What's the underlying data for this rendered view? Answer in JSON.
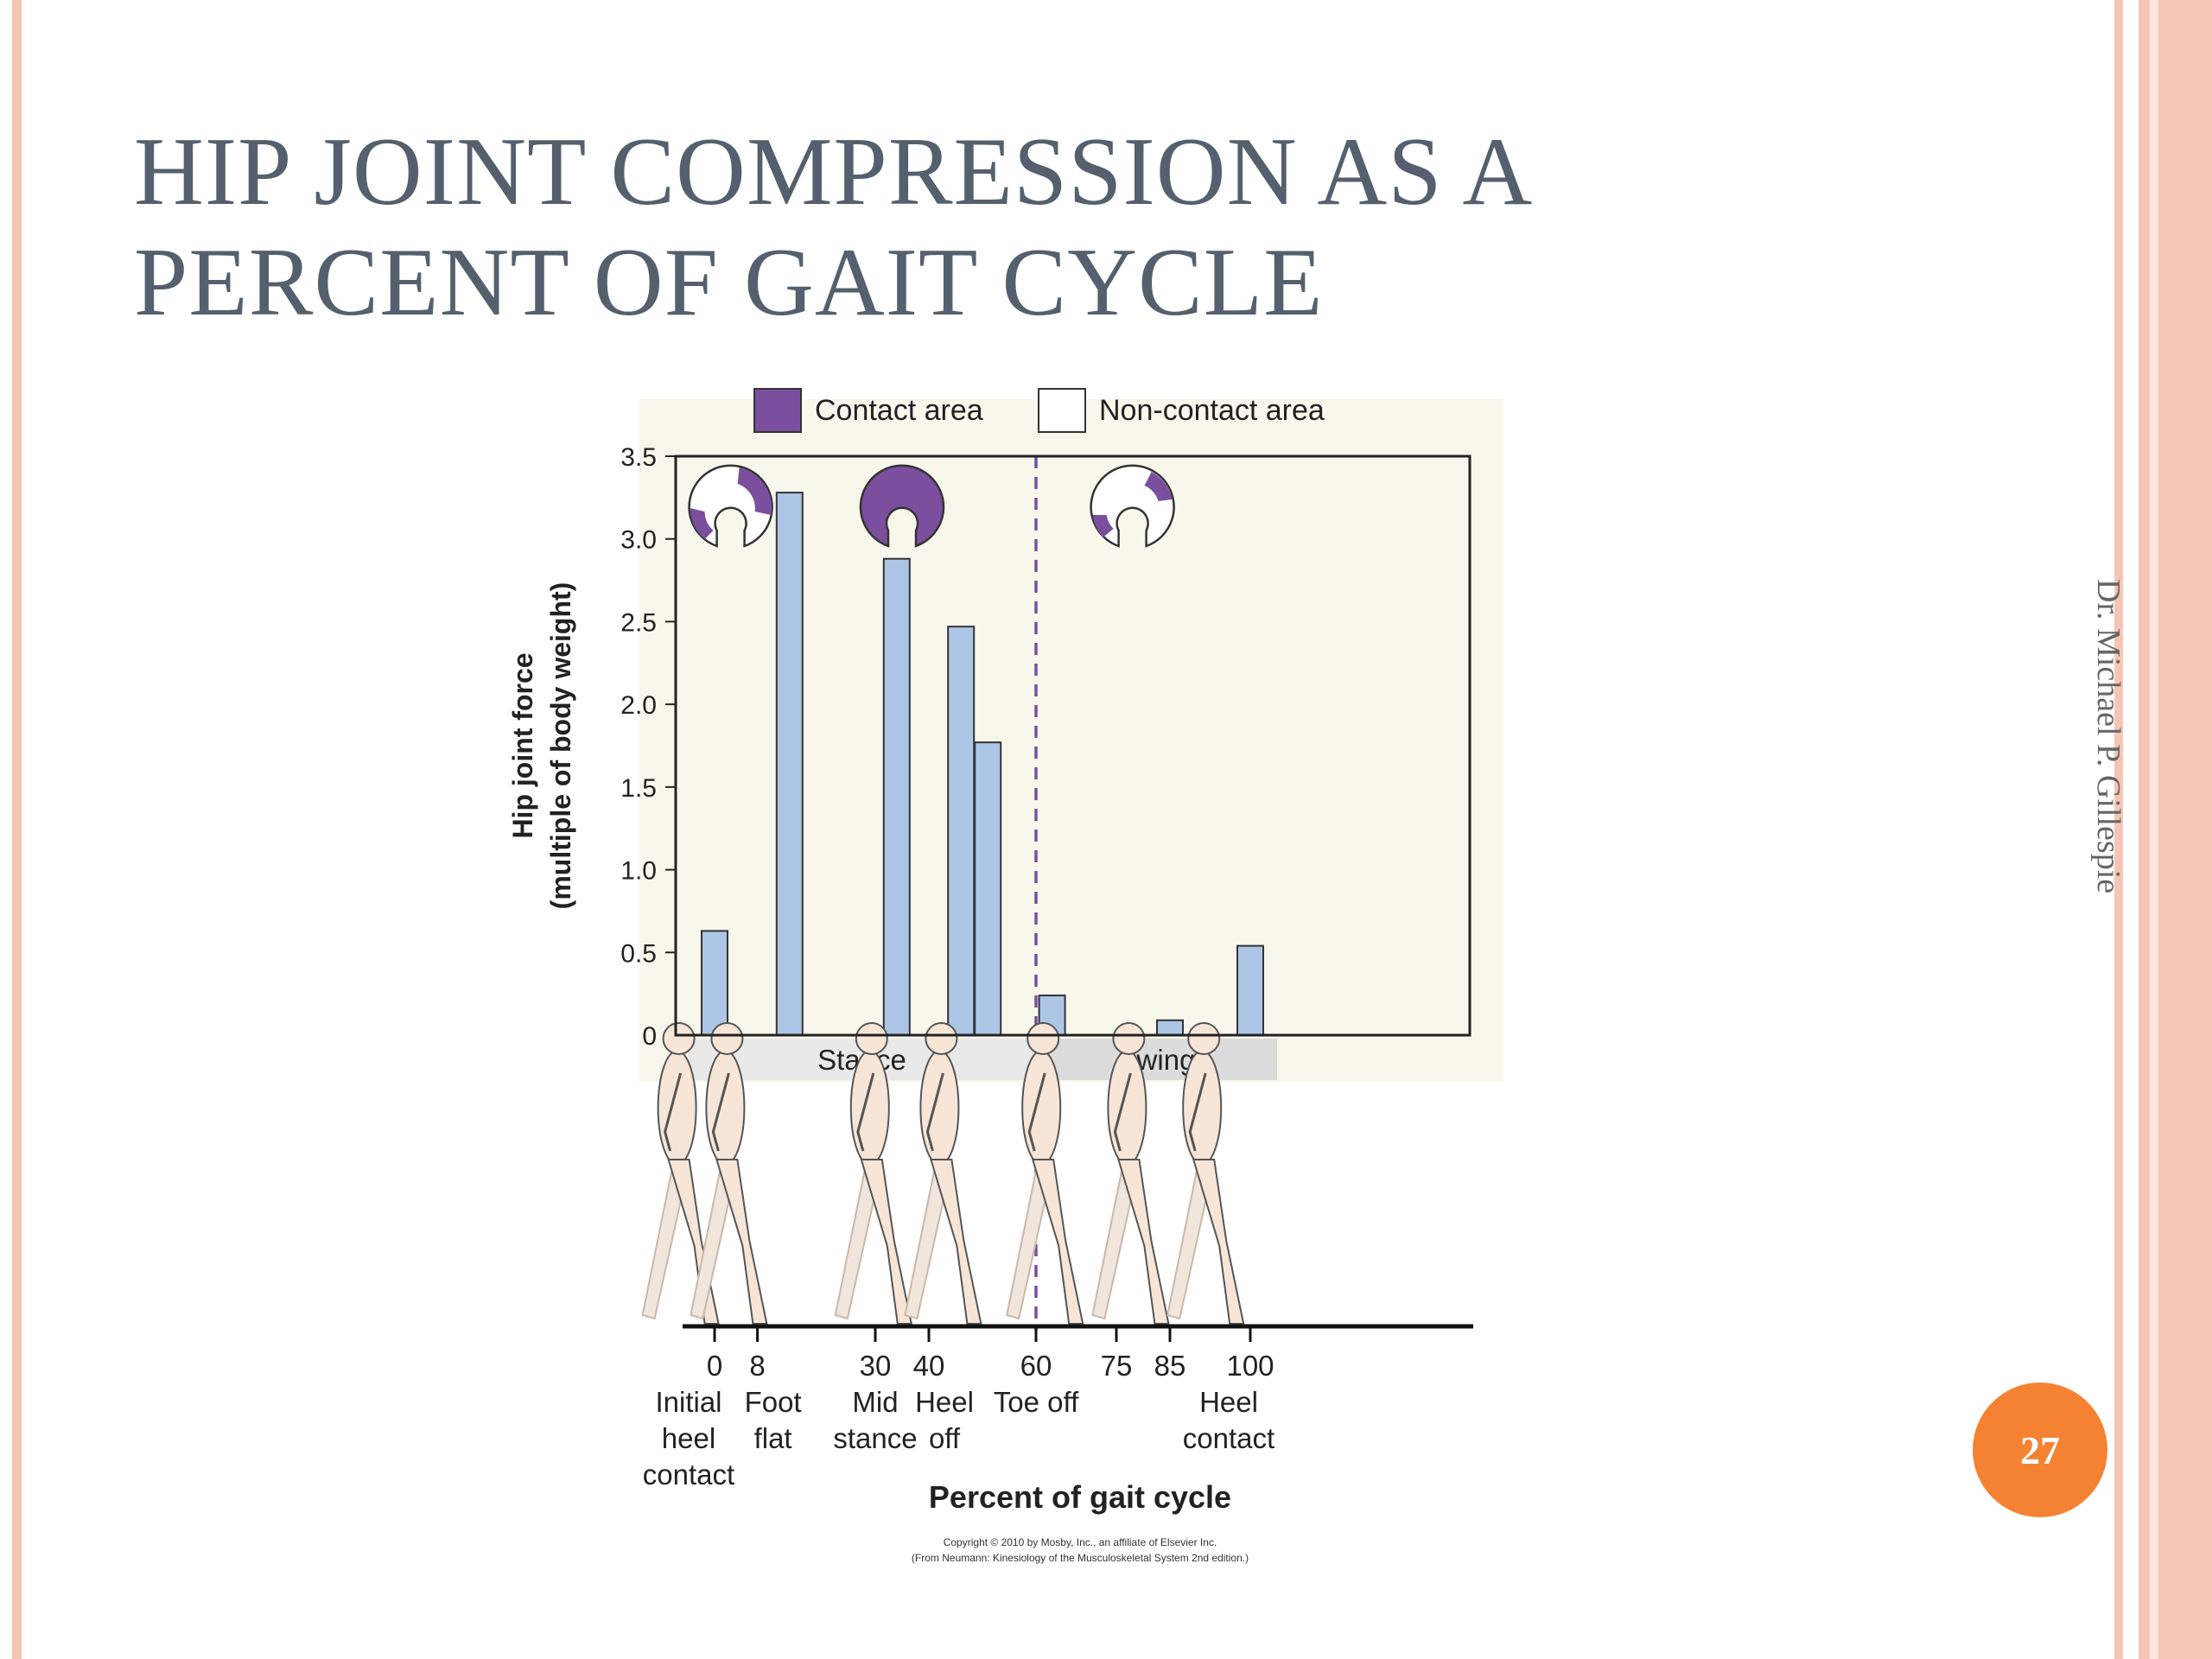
{
  "slide": {
    "title_line1": "HIP JOINT COMPRESSION AS A",
    "title_line2": "PERCENT OF GAIT CYCLE",
    "author": "Dr. Michael P. Gillespie",
    "page_number": "27",
    "copyright_line1": "Copyright © 2010 by Mosby, Inc., an affiliate of Elsevier Inc.",
    "copyright_line2": "(From Neumann: Kinesiology of the Musculoskeletal System 2nd edition.)"
  },
  "colors": {
    "accent": "#f58233",
    "border": "#f6c6b4",
    "title": "#55606e",
    "bar_fill": "#aec6e6",
    "contact": "#7b4f9e",
    "plot_bg": "#f7f7ec"
  },
  "chart_data": {
    "type": "bar",
    "title": "",
    "ylabel_line1": "Hip joint force",
    "ylabel_line2": "(multiple of body weight)",
    "xlabel": "Percent of gait cycle",
    "ylim": [
      0,
      3.5
    ],
    "yticks": [
      0,
      0.5,
      1.0,
      1.5,
      2.0,
      2.5,
      3.0,
      3.5
    ],
    "ytick_labels": [
      "0",
      "0.5",
      "1.0",
      "1.5",
      "2.0",
      "2.5",
      "3.0",
      "3.5"
    ],
    "legend": [
      "Contact area",
      "Non-contact area"
    ],
    "legend_placement": "top",
    "bars": [
      {
        "x": 0,
        "value": 0.63
      },
      {
        "x": 14,
        "value": 3.28
      },
      {
        "x": 34,
        "value": 2.88
      },
      {
        "x": 46,
        "value": 2.47
      },
      {
        "x": 51,
        "value": 1.77
      },
      {
        "x": 63,
        "value": 0.24
      },
      {
        "x": 85,
        "value": 0.09
      },
      {
        "x": 100,
        "value": 0.54
      }
    ],
    "phases": [
      {
        "label": "Stance",
        "from": -5,
        "to": 60
      },
      {
        "label": "Swing",
        "from": 60,
        "to": 105
      }
    ],
    "toe_off_x": 60,
    "x_ticks": [
      {
        "x": 0,
        "label": "0",
        "event": [
          "Initial",
          "heel",
          "contact"
        ]
      },
      {
        "x": 8,
        "label": "8",
        "event": [
          "Foot",
          "flat"
        ]
      },
      {
        "x": 30,
        "label": "30",
        "event": [
          "Mid",
          "stance"
        ]
      },
      {
        "x": 40,
        "label": "40",
        "event": [
          "Heel",
          "off"
        ]
      },
      {
        "x": 60,
        "label": "60",
        "event": [
          "Toe off"
        ]
      },
      {
        "x": 75,
        "label": "75",
        "event": []
      },
      {
        "x": 85,
        "label": "85",
        "event": []
      },
      {
        "x": 100,
        "label": "100",
        "event": [
          "Heel",
          "contact"
        ]
      }
    ],
    "contact_icons": [
      {
        "x": 3,
        "contact": "partial"
      },
      {
        "x": 35,
        "contact": "full"
      },
      {
        "x": 78,
        "contact": "small"
      }
    ],
    "walking_figures_x": [
      -7,
      2,
      29,
      42,
      61,
      77,
      91
    ]
  }
}
